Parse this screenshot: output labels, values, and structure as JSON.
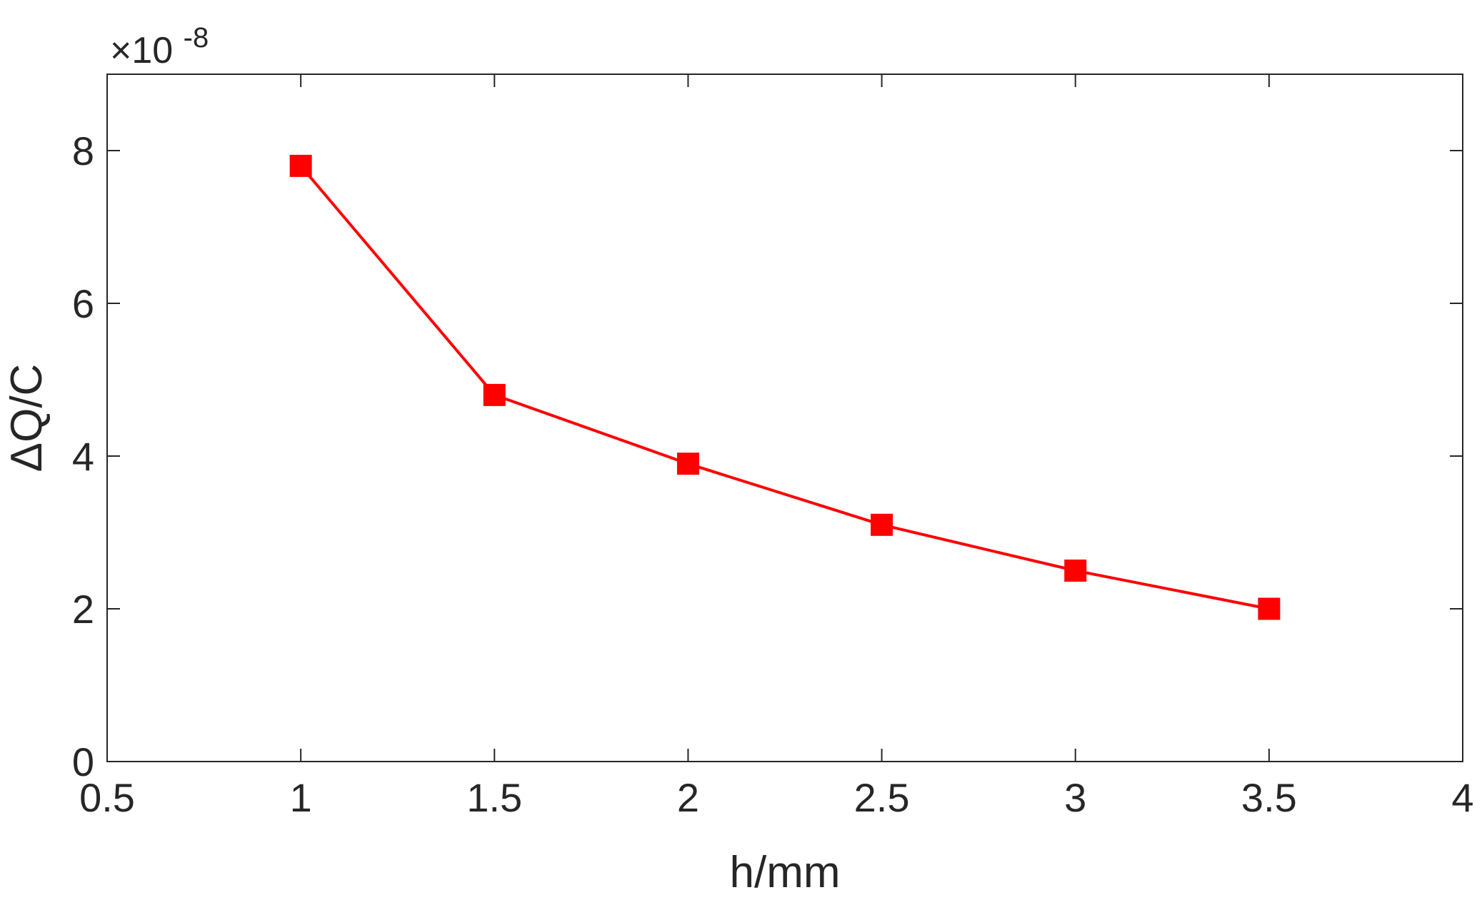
{
  "chart_data": {
    "type": "line",
    "title": "",
    "xlabel": "h/mm",
    "ylabel": "ΔQ/C",
    "y_exponent_label": {
      "prefix": "×10",
      "exponent": "-8"
    },
    "xlim": [
      0.5,
      4
    ],
    "ylim": [
      0,
      9
    ],
    "x_ticks": [
      0.5,
      1,
      1.5,
      2,
      2.5,
      3,
      3.5,
      4
    ],
    "x_tick_labels": [
      "0.5",
      "1",
      "1.5",
      "2",
      "2.5",
      "3",
      "3.5",
      "4"
    ],
    "y_ticks": [
      0,
      2,
      4,
      6,
      8
    ],
    "y_tick_labels": [
      "0",
      "2",
      "4",
      "6",
      "8"
    ],
    "grid": false,
    "series": [
      {
        "x": [
          1,
          1.5,
          2,
          2.5,
          3,
          3.5
        ],
        "y": [
          7.8,
          4.8,
          3.9,
          3.1,
          2.5,
          2.0
        ],
        "color": "#ff0000",
        "marker": "square"
      }
    ]
  }
}
